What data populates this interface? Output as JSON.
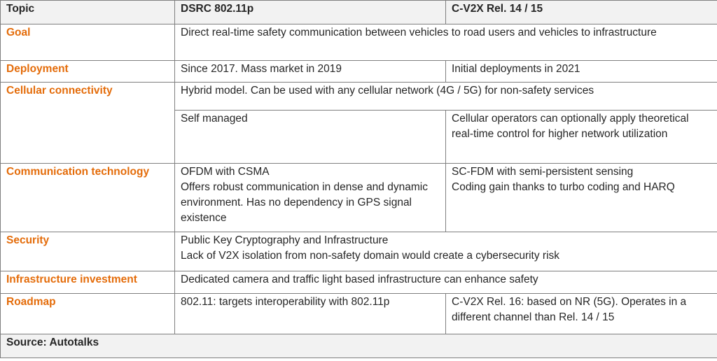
{
  "header": {
    "topic": "Topic",
    "dsrc": "DSRC 802.11p",
    "cv2x": "C-V2X Rel. 14 / 15"
  },
  "rows": {
    "goal": {
      "topic": "Goal",
      "text": "Direct real-time safety communication between vehicles to road users and vehicles to infrastructure"
    },
    "deployment": {
      "topic": "Deployment",
      "dsrc": "Since 2017. Mass market in 2019",
      "cv2x": "Initial deployments in 2021"
    },
    "cellular": {
      "topic": "Cellular connectivity",
      "text": "Hybrid model. Can be used with any cellular network (4G / 5G) for non-safety services",
      "dsrc": "Self managed",
      "cv2x": "Cellular operators can optionally apply theoretical real-time control for higher network utilization"
    },
    "comm": {
      "topic": "Communication technology",
      "dsrc_line1": "OFDM with CSMA",
      "dsrc_line2": "Offers robust communication in dense and dynamic environment. Has no dependency in GPS signal existence",
      "cv2x_line1": "SC-FDM with semi-persistent sensing",
      "cv2x_line2": "Coding gain thanks to turbo coding and HARQ"
    },
    "security": {
      "topic": "Security",
      "line1": "Public Key Cryptography and Infrastructure",
      "line2": "Lack of V2X isolation from non-safety domain would create a cybersecurity risk"
    },
    "infra": {
      "topic": "Infrastructure investment",
      "text": "Dedicated camera and traffic light based infrastructure can enhance safety"
    },
    "roadmap": {
      "topic": "Roadmap",
      "dsrc": "802.11: targets interoperability with 802.11p",
      "cv2x": "C-V2X Rel. 16: based on NR (5G). Operates in a different channel than Rel. 14 / 15"
    }
  },
  "source": "Source: Autotalks",
  "colors": {
    "topic_text": "#e46c0a",
    "header_bg": "#f2f2f2",
    "border": "#7f7f7f"
  }
}
